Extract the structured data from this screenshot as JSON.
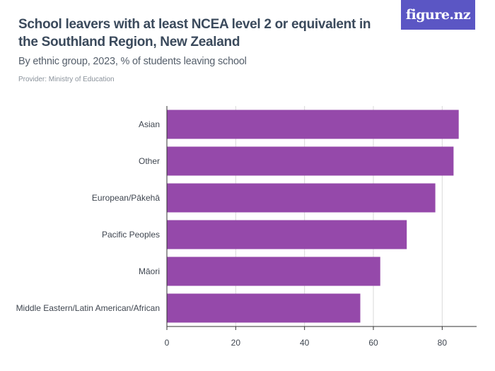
{
  "header": {
    "title": "School leavers with at least NCEA level 2 or equivalent in the Southland Region, New Zealand",
    "subtitle": "By ethnic group, 2023, % of students leaving school",
    "provider": "Provider: Ministry of Education",
    "logo_text": "figure.nz"
  },
  "colors": {
    "bar": "#9549aa",
    "grid": "#d9d9d9",
    "axis": "#333333"
  },
  "chart_data": {
    "type": "bar",
    "orientation": "horizontal",
    "categories": [
      "Asian",
      "Other",
      "European/Pākehā",
      "Pacific Peoples",
      "Māori",
      "Middle Eastern/Latin American/African"
    ],
    "values": [
      84.8,
      83.3,
      78.0,
      69.7,
      62.0,
      56.2
    ],
    "xlim": [
      0,
      90
    ],
    "xticks": [
      0,
      20,
      40,
      60,
      80
    ],
    "grid": true
  }
}
